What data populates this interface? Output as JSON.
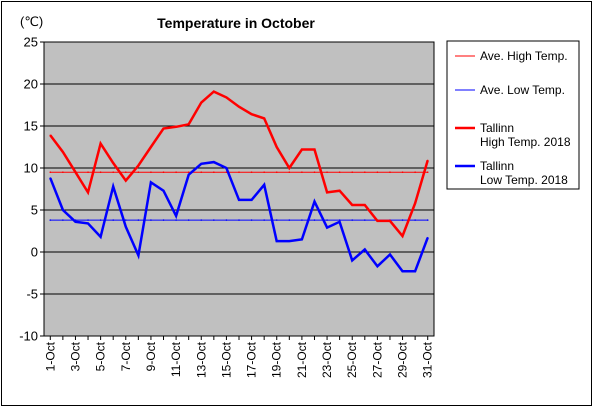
{
  "chart_data": {
    "type": "line",
    "title": "Temperature in October",
    "unit_label": "(℃)",
    "xlabel": "",
    "ylabel": "",
    "ylim": [
      -10,
      25
    ],
    "y_ticks": [
      25,
      20,
      15,
      10,
      5,
      0,
      -5,
      -10
    ],
    "grid": true,
    "legend_position": "right",
    "categories": [
      "1-Oct",
      "2-Oct",
      "3-Oct",
      "4-Oct",
      "5-Oct",
      "6-Oct",
      "7-Oct",
      "8-Oct",
      "9-Oct",
      "10-Oct",
      "11-Oct",
      "12-Oct",
      "13-Oct",
      "14-Oct",
      "15-Oct",
      "16-Oct",
      "17-Oct",
      "18-Oct",
      "19-Oct",
      "20-Oct",
      "21-Oct",
      "22-Oct",
      "23-Oct",
      "24-Oct",
      "25-Oct",
      "26-Oct",
      "27-Oct",
      "28-Oct",
      "29-Oct",
      "30-Oct",
      "31-Oct"
    ],
    "x_tick_labels": [
      "1-Oct",
      "3-Oct",
      "5-Oct",
      "7-Oct",
      "9-Oct",
      "11-Oct",
      "13-Oct",
      "15-Oct",
      "17-Oct",
      "19-Oct",
      "21-Oct",
      "23-Oct",
      "25-Oct",
      "27-Oct",
      "29-Oct",
      "31-Oct"
    ],
    "series": [
      {
        "name": "Ave. High Temp.",
        "color": "#ff0000",
        "line_width": 1,
        "values": [
          9.5,
          9.5,
          9.5,
          9.5,
          9.5,
          9.5,
          9.5,
          9.5,
          9.5,
          9.5,
          9.5,
          9.5,
          9.5,
          9.5,
          9.5,
          9.5,
          9.5,
          9.5,
          9.5,
          9.5,
          9.5,
          9.5,
          9.5,
          9.5,
          9.5,
          9.5,
          9.5,
          9.5,
          9.5,
          9.5,
          9.5
        ]
      },
      {
        "name": "Ave. Low Temp.",
        "color": "#0000ff",
        "line_width": 1,
        "values": [
          3.8,
          3.8,
          3.8,
          3.8,
          3.8,
          3.8,
          3.8,
          3.8,
          3.8,
          3.8,
          3.8,
          3.8,
          3.8,
          3.8,
          3.8,
          3.8,
          3.8,
          3.8,
          3.8,
          3.8,
          3.8,
          3.8,
          3.8,
          3.8,
          3.8,
          3.8,
          3.8,
          3.8,
          3.8,
          3.8,
          3.8
        ]
      },
      {
        "name": "Tallinn\nHigh Temp. 2018",
        "color": "#ff0000",
        "line_width": 2.5,
        "values": [
          13.9,
          11.9,
          9.5,
          7.1,
          12.9,
          10.6,
          8.5,
          10.3,
          12.5,
          14.7,
          14.9,
          15.2,
          17.8,
          19.1,
          18.4,
          17.3,
          16.4,
          15.9,
          12.5,
          10.0,
          12.2,
          12.2,
          7.1,
          7.3,
          5.6,
          5.6,
          3.7,
          3.7,
          1.9,
          5.8,
          10.9
        ]
      },
      {
        "name": "Tallinn\nLow Temp. 2018",
        "color": "#0000ff",
        "line_width": 2.5,
        "values": [
          8.8,
          5.0,
          3.6,
          3.4,
          1.8,
          7.8,
          3.0,
          -0.4,
          8.3,
          7.3,
          4.3,
          9.2,
          10.5,
          10.7,
          10.0,
          6.2,
          6.2,
          8.0,
          1.3,
          1.3,
          1.5,
          6.0,
          2.9,
          3.6,
          -1.0,
          0.3,
          -1.7,
          -0.3,
          -2.3,
          -2.3,
          1.7
        ]
      }
    ]
  }
}
